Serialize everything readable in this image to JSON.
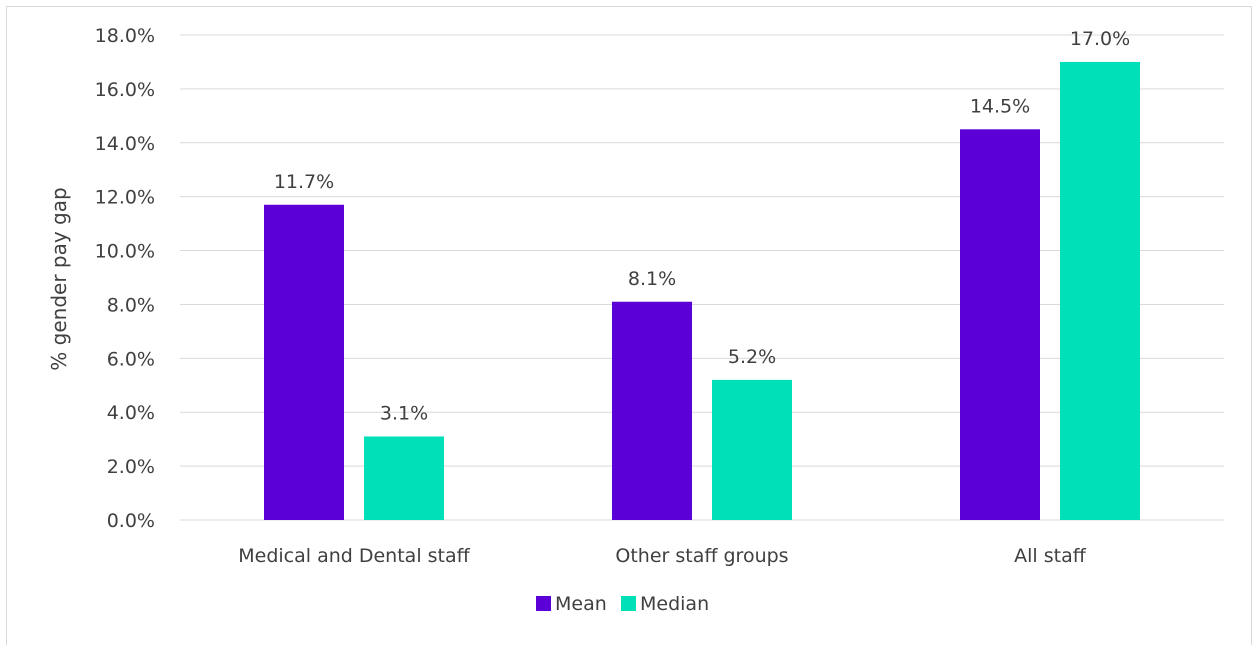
{
  "chart_data": {
    "type": "bar",
    "title": "",
    "xlabel": "",
    "ylabel": "% gender pay gap",
    "ylim": [
      0,
      18
    ],
    "ytick_step": 2,
    "ytick_format": "percent_1dp",
    "yticks": [
      "0.0%",
      "2.0%",
      "4.0%",
      "6.0%",
      "8.0%",
      "10.0%",
      "12.0%",
      "14.0%",
      "16.0%",
      "18.0%"
    ],
    "categories": [
      "Medical and Dental staff",
      "Other staff groups",
      "All staff"
    ],
    "series": [
      {
        "name": "Mean",
        "color": "#5b00d7",
        "values": [
          11.7,
          8.1,
          14.5
        ],
        "labels": [
          "11.7%",
          "8.1%",
          "14.5%"
        ]
      },
      {
        "name": "Median",
        "color": "#00e0b8",
        "values": [
          3.1,
          5.2,
          17.0
        ],
        "labels": [
          "3.1%",
          "5.2%",
          "17.0%"
        ]
      }
    ],
    "grid": true,
    "legend": "bottom-center"
  }
}
